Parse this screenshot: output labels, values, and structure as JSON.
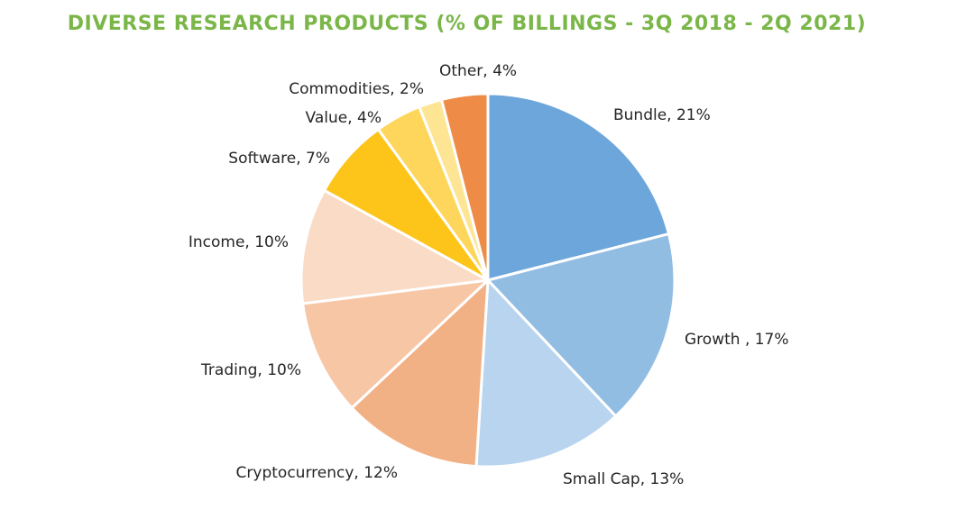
{
  "chart_data": {
    "type": "pie",
    "title": "DIVERSE RESEARCH PRODUCTS (% OF BILLINGS - 3Q 2018 - 2Q 2021)",
    "start_angle_deg": 0,
    "direction": "clockwise",
    "slices": [
      {
        "label": "Bundle, 21%",
        "name": "Bundle",
        "value": 21,
        "color": "#6ca6da"
      },
      {
        "label": "Growth , 17%",
        "name": "Growth",
        "value": 17,
        "color": "#92bde3"
      },
      {
        "label": "Small Cap, 13%",
        "name": "Small Cap",
        "value": 13,
        "color": "#b8d4ee"
      },
      {
        "label": "Cryptocurrency, 12%",
        "name": "Cryptocurrency",
        "value": 12,
        "color": "#f2b185"
      },
      {
        "label": "Trading, 10%",
        "name": "Trading",
        "value": 10,
        "color": "#f6c6a5"
      },
      {
        "label": "Income, 10%",
        "name": "Income",
        "value": 10,
        "color": "#f9dbc6"
      },
      {
        "label": "Software, 7%",
        "name": "Software",
        "value": 7,
        "color": "#fdc419"
      },
      {
        "label": "Value, 4%",
        "name": "Value",
        "value": 4,
        "color": "#fed65c"
      },
      {
        "label": "Commodities, 2%",
        "name": "Commodities",
        "value": 2,
        "color": "#fde594"
      },
      {
        "label": "Other, 4%",
        "name": "Other",
        "value": 4,
        "color": "#ee8b46"
      }
    ]
  }
}
